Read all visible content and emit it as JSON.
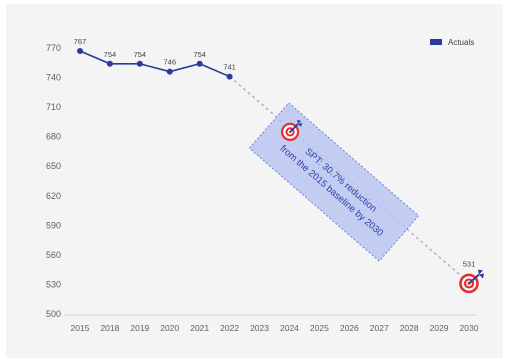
{
  "chart_data": {
    "type": "line",
    "title": "",
    "xlabel": "",
    "ylabel": "",
    "categories": [
      "2015",
      "2018",
      "2019",
      "2020",
      "2021",
      "2022",
      "2023",
      "2024",
      "2025",
      "2026",
      "2027",
      "2028",
      "2029",
      "2030"
    ],
    "series": [
      {
        "name": "Actuals",
        "x": [
          "2015",
          "2018",
          "2019",
          "2020",
          "2021",
          "2022"
        ],
        "values": [
          767,
          754,
          754,
          746,
          754,
          741
        ],
        "labels": [
          "767",
          "754",
          "754",
          "746",
          "754",
          "741"
        ],
        "color": "#2b3a9e"
      }
    ],
    "trajectory": {
      "from": {
        "x": "2022",
        "y": 741
      },
      "to": {
        "x": "2030",
        "y": 531
      },
      "style": "dashed",
      "color": "#9aa6d6"
    },
    "target": {
      "x": "2030",
      "y": 531,
      "label": "531"
    },
    "yticks": [
      500,
      530,
      560,
      590,
      620,
      650,
      680,
      710,
      740,
      770
    ],
    "ylim": [
      500,
      770
    ],
    "grid": false,
    "legend": {
      "position": "top-right"
    },
    "annotation": {
      "lines": [
        "SPT: 30.7% reduction",
        "from the 2015 baseline by 2030"
      ]
    },
    "colors": {
      "series": "#2b3a9e",
      "annotation_fill": "#b9c6f0",
      "annotation_border": "#6f82d8",
      "target_red": "#e0312f"
    }
  }
}
